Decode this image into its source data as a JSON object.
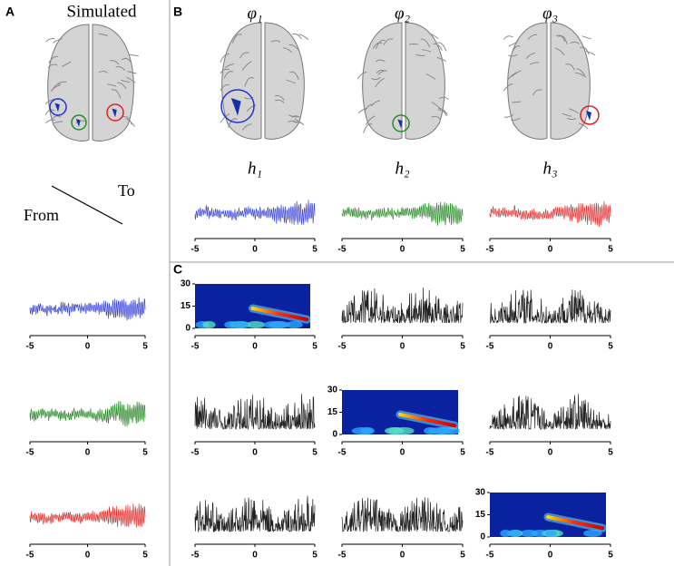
{
  "panel_a": {
    "label": "A",
    "title": "Simulated",
    "to_label": "To",
    "from_label": "From"
  },
  "panel_b": {
    "label": "B",
    "sources": [
      "φ₁",
      "φ₂",
      "φ₃"
    ],
    "signals": [
      "h₁",
      "h₂",
      "h₃"
    ]
  },
  "panel_c": {
    "label": "C"
  },
  "time_axis_ticks": [
    "-5",
    "0",
    "5"
  ],
  "frequency_axis_ticks": [
    "30",
    "15",
    "0"
  ]
}
